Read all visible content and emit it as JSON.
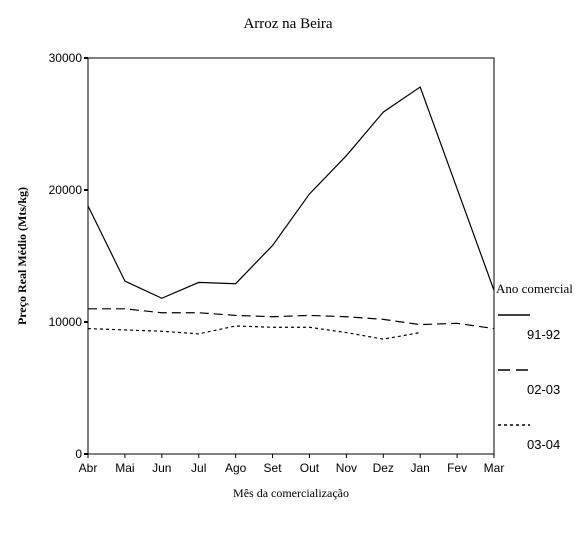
{
  "chart_data": {
    "type": "line",
    "title": "Arroz na Beira",
    "xlabel": "Mês da comercialização",
    "ylabel": "Preço Real Médio (Mts/kg)",
    "categories": [
      "Abr",
      "Mai",
      "Jun",
      "Jul",
      "Ago",
      "Set",
      "Out",
      "Nov",
      "Dez",
      "Jan",
      "Fev",
      "Mar"
    ],
    "ylim": [
      0,
      30000
    ],
    "yticks": [
      0,
      10000,
      20000,
      30000
    ],
    "grid": false,
    "legend": {
      "title": "Ano comercial",
      "placement": "right"
    },
    "series": [
      {
        "name": "91-92",
        "style": "solid",
        "values": [
          18800,
          13100,
          11800,
          13000,
          12900,
          15800,
          19700,
          22600,
          25900,
          27800,
          20100,
          12400
        ]
      },
      {
        "name": "02-03",
        "style": "dashed",
        "values": [
          11000,
          11000,
          10700,
          10700,
          10500,
          10400,
          10500,
          10400,
          10200,
          9800,
          9900,
          9500
        ]
      },
      {
        "name": "03-04",
        "style": "dotted",
        "values": [
          9500,
          9400,
          9300,
          9100,
          9700,
          9600,
          9600,
          9200,
          8700,
          9200,
          null,
          null
        ]
      }
    ]
  }
}
